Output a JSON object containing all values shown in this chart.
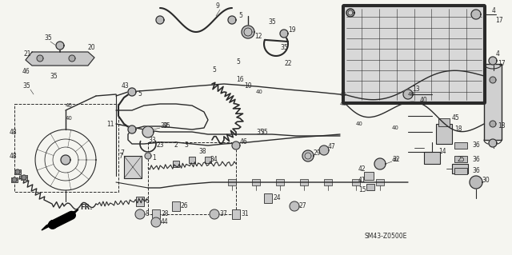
{
  "bg_color": "#f5f5f0",
  "line_color": "#2a2a2a",
  "figsize": [
    6.4,
    3.19
  ],
  "dpi": 100,
  "diagram_ref": "SM43-Z0500E",
  "title_color": "#1a1a1a"
}
